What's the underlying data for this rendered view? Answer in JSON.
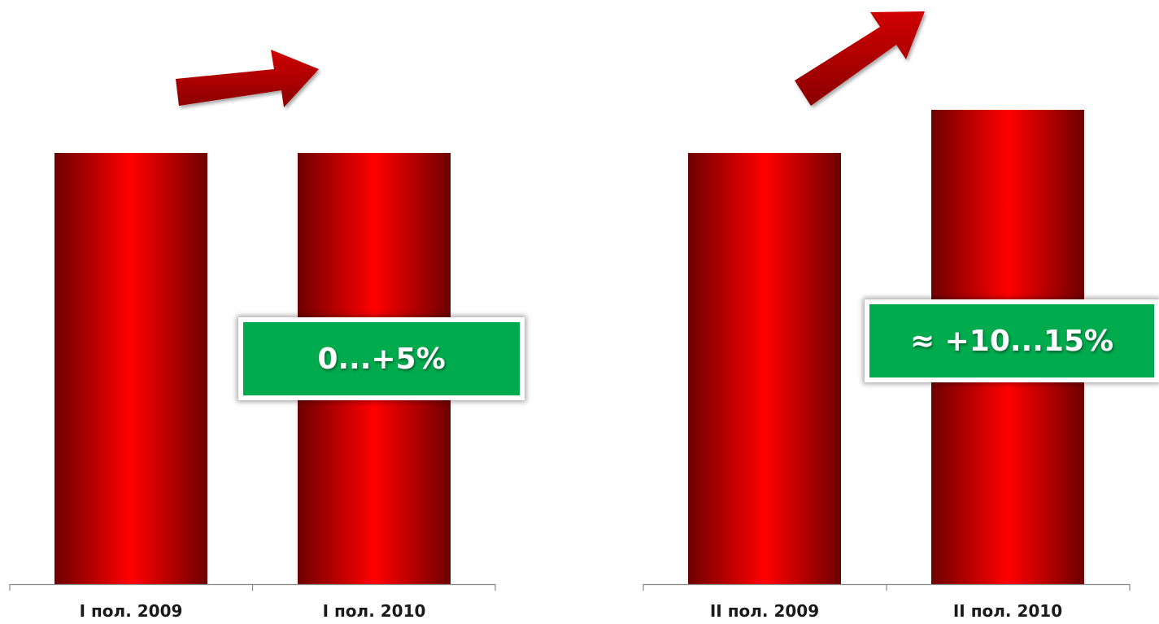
{
  "chart_data": [
    {
      "type": "bar",
      "categories": [
        "I пол. 2009",
        "I пол. 2010"
      ],
      "values": [
        100,
        100
      ],
      "ylim": [
        0,
        105
      ],
      "grid": false,
      "bar_color": "#ff0000",
      "annotation": "0...+5%",
      "trend_icon": "arrow-up-right-icon"
    },
    {
      "type": "bar",
      "categories": [
        "II пол. 2009",
        "II пол. 2010"
      ],
      "values": [
        100,
        110
      ],
      "ylim": [
        0,
        105
      ],
      "grid": false,
      "bar_color": "#ff0000",
      "annotation": "≈ +10...15%",
      "trend_icon": "arrow-up-right-icon"
    }
  ],
  "colors": {
    "bar_light": "#ff0000",
    "bar_dark": "#6e0000",
    "arrow": "#c00000",
    "callout": "#00ab4e"
  }
}
